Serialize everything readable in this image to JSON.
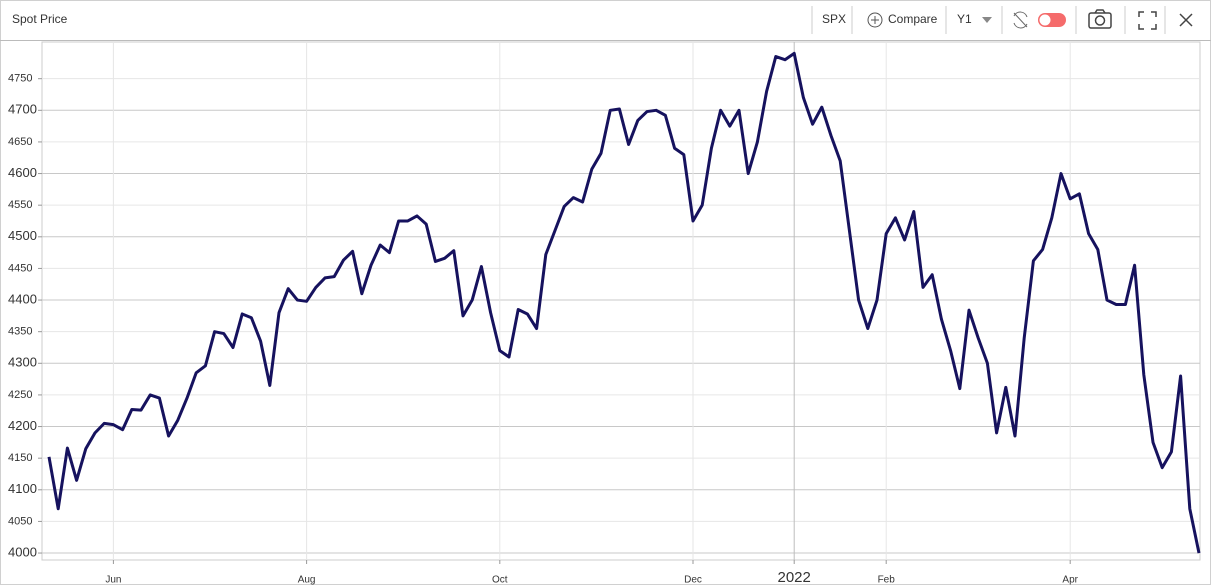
{
  "header": {
    "title": "Spot Price",
    "symbol": "SPX",
    "compare": "Compare",
    "range": "Y1"
  },
  "chart_data": {
    "type": "line",
    "categories": [
      null,
      null,
      null,
      null,
      null,
      null,
      null,
      "Jun",
      null,
      null,
      null,
      null,
      null,
      null,
      null,
      null,
      null,
      null,
      null,
      null,
      null,
      null,
      null,
      null,
      null,
      null,
      null,
      null,
      "Aug",
      null,
      null,
      null,
      null,
      null,
      null,
      null,
      null,
      null,
      null,
      null,
      null,
      null,
      null,
      null,
      null,
      null,
      null,
      null,
      null,
      "Oct",
      null,
      null,
      null,
      null,
      null,
      null,
      null,
      null,
      null,
      null,
      null,
      null,
      null,
      null,
      null,
      null,
      null,
      null,
      null,
      null,
      "Dec",
      null,
      null,
      null,
      null,
      null,
      null,
      null,
      null,
      null,
      null,
      "2022",
      null,
      null,
      null,
      null,
      null,
      null,
      null,
      null,
      null,
      "Feb",
      null,
      null,
      null,
      null,
      null,
      null,
      null,
      null,
      null,
      null,
      null,
      null,
      null,
      null,
      null,
      null,
      null,
      null,
      null,
      "Apr",
      null,
      null,
      null,
      null,
      null,
      null,
      null,
      null,
      null,
      null,
      null,
      null,
      null,
      null
    ],
    "series": [
      {
        "name": "SPX",
        "color": "#16125e",
        "values": [
          4152,
          4070,
          4166,
          4115,
          4165,
          4190,
          4205,
          4203,
          4195,
          4227,
          4226,
          4250,
          4245,
          4185,
          4210,
          4245,
          4285,
          4296,
          4350,
          4347,
          4325,
          4378,
          4372,
          4335,
          4265,
          4380,
          4418,
          4400,
          4398,
          4420,
          4435,
          4437,
          4463,
          4477,
          4410,
          4455,
          4487,
          4475,
          4525,
          4525,
          4533,
          4520,
          4461,
          4466,
          4478,
          4375,
          4400,
          4453,
          4380,
          4320,
          4310,
          4385,
          4378,
          4355,
          4472,
          4510,
          4548,
          4562,
          4555,
          4607,
          4632,
          4700,
          4702,
          4646,
          4684,
          4698,
          4700,
          4692,
          4640,
          4630,
          4525,
          4550,
          4640,
          4700,
          4675,
          4700,
          4600,
          4650,
          4730,
          4785,
          4780,
          4790,
          4720,
          4678,
          4705,
          4660,
          4620,
          4510,
          4400,
          4355,
          4400,
          4505,
          4530,
          4495,
          4540,
          4420,
          4440,
          4370,
          4320,
          4260,
          4384,
          4340,
          4300,
          4190,
          4262,
          4185,
          4340,
          4462,
          4480,
          4530,
          4600,
          4560,
          4568,
          4505,
          4480,
          4400,
          4393,
          4393,
          4455,
          4282,
          4175,
          4135,
          4160,
          4280,
          4070,
          4000
        ]
      }
    ],
    "ylim": [
      3989,
      4808
    ],
    "yticks": [
      4000,
      4050,
      4100,
      4150,
      4200,
      4250,
      4300,
      4350,
      4400,
      4450,
      4500,
      4550,
      4600,
      4650,
      4700,
      4750
    ],
    "grid": true
  }
}
